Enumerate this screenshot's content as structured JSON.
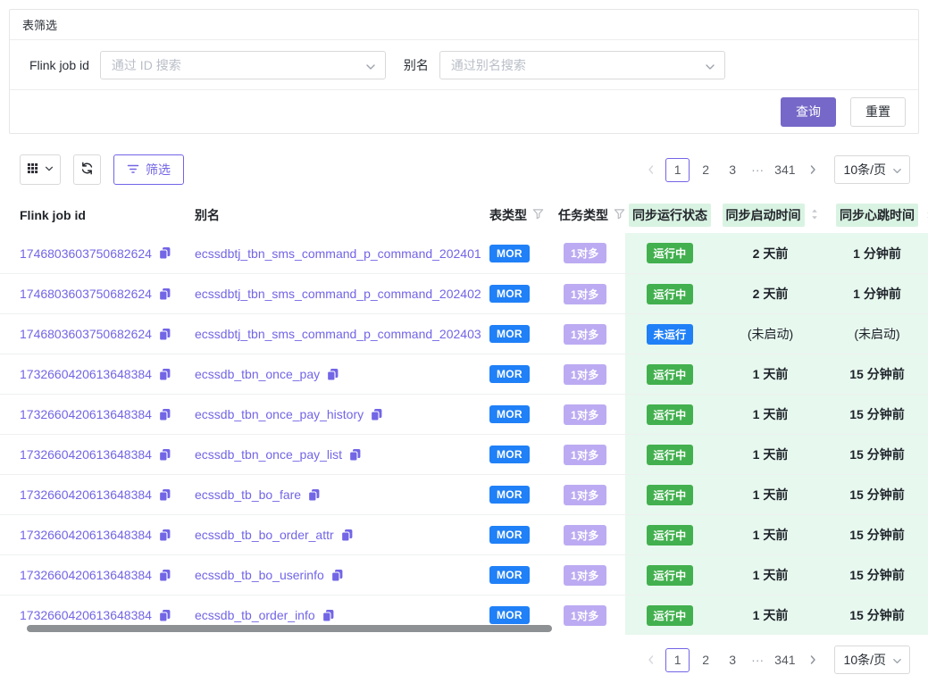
{
  "colors": {
    "primary": "#7265e6",
    "button_primary_bg": "#7568c8",
    "badge_blue": "#2080f7",
    "badge_lavender": "#bcabf2",
    "badge_green": "#42b04e",
    "green_col_bg": "#e7f8ee",
    "header_highlight": "#d9f3e3"
  },
  "filter_card": {
    "title": "表筛选",
    "flink_label": "Flink job id",
    "flink_placeholder": "通过 ID 搜索",
    "alias_label": "别名",
    "alias_placeholder": "通过别名搜索",
    "query_label": "查询",
    "reset_label": "重置"
  },
  "toolbar": {
    "filter_label": "筛选"
  },
  "pagination": {
    "pages": [
      "1",
      "2",
      "3",
      "···",
      "341"
    ],
    "current": "1",
    "page_size_label": "10条/页"
  },
  "table": {
    "headers": {
      "flink_job_id": "Flink job id",
      "alias": "别名",
      "table_type": "表类型",
      "task_type": "任务类型",
      "sync_status": "同步运行状态",
      "sync_start": "同步启动时间",
      "sync_heartbeat": "同步心跳时间"
    },
    "rows": [
      {
        "id": "1746803603750682624",
        "alias": "ecssdbtj_tbn_sms_command_p_command_202401",
        "table_type": "MOR",
        "task_type": "1对多",
        "status": "运行中",
        "status_color": "green",
        "start": "2 天前",
        "heartbeat": "1 分钟前",
        "bold_times": true
      },
      {
        "id": "1746803603750682624",
        "alias": "ecssdbtj_tbn_sms_command_p_command_202402",
        "table_type": "MOR",
        "task_type": "1对多",
        "status": "运行中",
        "status_color": "green",
        "start": "2 天前",
        "heartbeat": "1 分钟前",
        "bold_times": true
      },
      {
        "id": "1746803603750682624",
        "alias": "ecssdbtj_tbn_sms_command_p_command_202403",
        "table_type": "MOR",
        "task_type": "1对多",
        "status": "未运行",
        "status_color": "blue",
        "start": "(未启动)",
        "heartbeat": "(未启动)",
        "bold_times": false
      },
      {
        "id": "1732660420613648384",
        "alias": "ecssdb_tbn_once_pay",
        "table_type": "MOR",
        "task_type": "1对多",
        "status": "运行中",
        "status_color": "green",
        "start": "1 天前",
        "heartbeat": "15 分钟前",
        "bold_times": true
      },
      {
        "id": "1732660420613648384",
        "alias": "ecssdb_tbn_once_pay_history",
        "table_type": "MOR",
        "task_type": "1对多",
        "status": "运行中",
        "status_color": "green",
        "start": "1 天前",
        "heartbeat": "15 分钟前",
        "bold_times": true
      },
      {
        "id": "1732660420613648384",
        "alias": "ecssdb_tbn_once_pay_list",
        "table_type": "MOR",
        "task_type": "1对多",
        "status": "运行中",
        "status_color": "green",
        "start": "1 天前",
        "heartbeat": "15 分钟前",
        "bold_times": true
      },
      {
        "id": "1732660420613648384",
        "alias": "ecssdb_tb_bo_fare",
        "table_type": "MOR",
        "task_type": "1对多",
        "status": "运行中",
        "status_color": "green",
        "start": "1 天前",
        "heartbeat": "15 分钟前",
        "bold_times": true
      },
      {
        "id": "1732660420613648384",
        "alias": "ecssdb_tb_bo_order_attr",
        "table_type": "MOR",
        "task_type": "1对多",
        "status": "运行中",
        "status_color": "green",
        "start": "1 天前",
        "heartbeat": "15 分钟前",
        "bold_times": true
      },
      {
        "id": "1732660420613648384",
        "alias": "ecssdb_tb_bo_userinfo",
        "table_type": "MOR",
        "task_type": "1对多",
        "status": "运行中",
        "status_color": "green",
        "start": "1 天前",
        "heartbeat": "15 分钟前",
        "bold_times": true
      },
      {
        "id": "1732660420613648384",
        "alias": "ecssdb_tb_order_info",
        "table_type": "MOR",
        "task_type": "1对多",
        "status": "运行中",
        "status_color": "green",
        "start": "1 天前",
        "heartbeat": "15 分钟前",
        "bold_times": true
      }
    ]
  }
}
